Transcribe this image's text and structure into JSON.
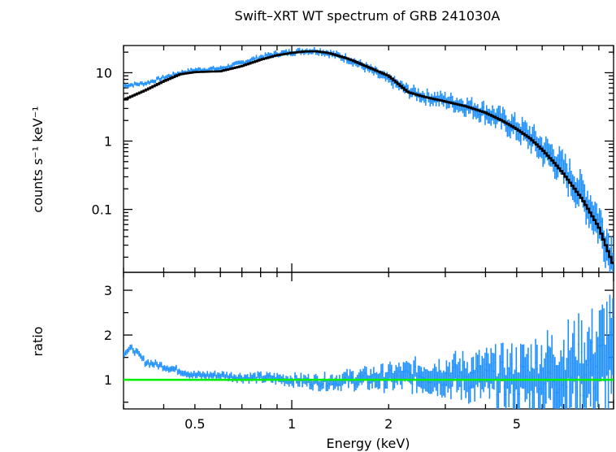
{
  "chart_data": [
    {
      "type": "scatter",
      "panel": "spectrum",
      "title": "Swift–XRT WT spectrum of GRB 241030A",
      "xlabel": "",
      "ylabel": "counts s⁻¹ keV⁻¹",
      "xscale": "log",
      "yscale": "log",
      "xlim": [
        0.3,
        10
      ],
      "ylim": [
        0.012,
        25
      ],
      "x_ticks": [
        0.5,
        1,
        2,
        5
      ],
      "y_ticks": [
        0.1,
        1,
        10
      ],
      "y_tick_labels": [
        "0.1",
        "1",
        "10"
      ],
      "grid": false,
      "legend": "none",
      "series": [
        {
          "role": "data",
          "color": "#1e90ff",
          "x": [
            0.3,
            0.35,
            0.4,
            0.45,
            0.5,
            0.6,
            0.7,
            0.8,
            0.9,
            1.0,
            1.1,
            1.2,
            1.3,
            1.5,
            1.7,
            2.0,
            2.3,
            2.6,
            3.0,
            3.5,
            4.0,
            4.5,
            5.0,
            5.5,
            6.0,
            6.5,
            7.0,
            8.0,
            9.0,
            10.0
          ],
          "y": [
            6.5,
            7.0,
            8.5,
            10.0,
            11.0,
            11.5,
            14.0,
            17.0,
            19.0,
            20.0,
            21.0,
            21.0,
            19.5,
            16.0,
            12.0,
            8.0,
            5.5,
            4.5,
            4.0,
            3.3,
            2.7,
            2.1,
            1.6,
            1.2,
            0.8,
            0.6,
            0.4,
            0.18,
            0.07,
            0.02
          ]
        },
        {
          "role": "model",
          "color": "#000000",
          "x": [
            0.3,
            0.35,
            0.4,
            0.45,
            0.5,
            0.6,
            0.7,
            0.8,
            0.9,
            1.0,
            1.1,
            1.2,
            1.3,
            1.5,
            1.7,
            2.0,
            2.3,
            2.6,
            3.0,
            3.5,
            4.0,
            4.5,
            5.0,
            5.5,
            6.0,
            6.5,
            7.0,
            8.0,
            9.0,
            10.0
          ],
          "y": [
            4.0,
            5.5,
            7.5,
            9.5,
            10.2,
            10.5,
            12.5,
            15.5,
            18.0,
            19.5,
            20.5,
            20.5,
            19.5,
            16.0,
            12.5,
            9.0,
            5.2,
            4.4,
            3.8,
            3.2,
            2.6,
            2.0,
            1.5,
            1.1,
            0.75,
            0.5,
            0.33,
            0.14,
            0.055,
            0.015
          ]
        }
      ]
    },
    {
      "type": "scatter",
      "panel": "ratio",
      "title": "",
      "xlabel": "Energy (keV)",
      "ylabel": "ratio",
      "xscale": "log",
      "yscale": "linear",
      "xlim": [
        0.3,
        10
      ],
      "ylim": [
        0.35,
        3.4
      ],
      "x_ticks": [
        0.5,
        1,
        2,
        5
      ],
      "x_tick_labels": [
        "0.5",
        "1",
        "2",
        "5"
      ],
      "y_ticks": [
        1,
        2,
        3
      ],
      "y_tick_labels": [
        "1",
        "2",
        "3"
      ],
      "grid": false,
      "legend": "none",
      "reference_line": {
        "y": 1,
        "color": "#00ee00"
      },
      "series": [
        {
          "role": "ratio",
          "color": "#1e90ff",
          "x": [
            0.3,
            0.32,
            0.35,
            0.4,
            0.45,
            0.5,
            0.6,
            0.7,
            0.8,
            1.0,
            1.2,
            1.5,
            2.0,
            2.5,
            3.0,
            4.0,
            5.0,
            6.0,
            7.0,
            8.0,
            9.0,
            9.5,
            10.0
          ],
          "y": [
            1.6,
            1.7,
            1.4,
            1.3,
            1.2,
            1.1,
            1.1,
            1.05,
            1.05,
            1.0,
            0.95,
            1.0,
            1.05,
            1.1,
            1.1,
            1.05,
            1.0,
            1.1,
            1.15,
            1.2,
            1.3,
            1.6,
            1.2
          ]
        }
      ]
    }
  ]
}
